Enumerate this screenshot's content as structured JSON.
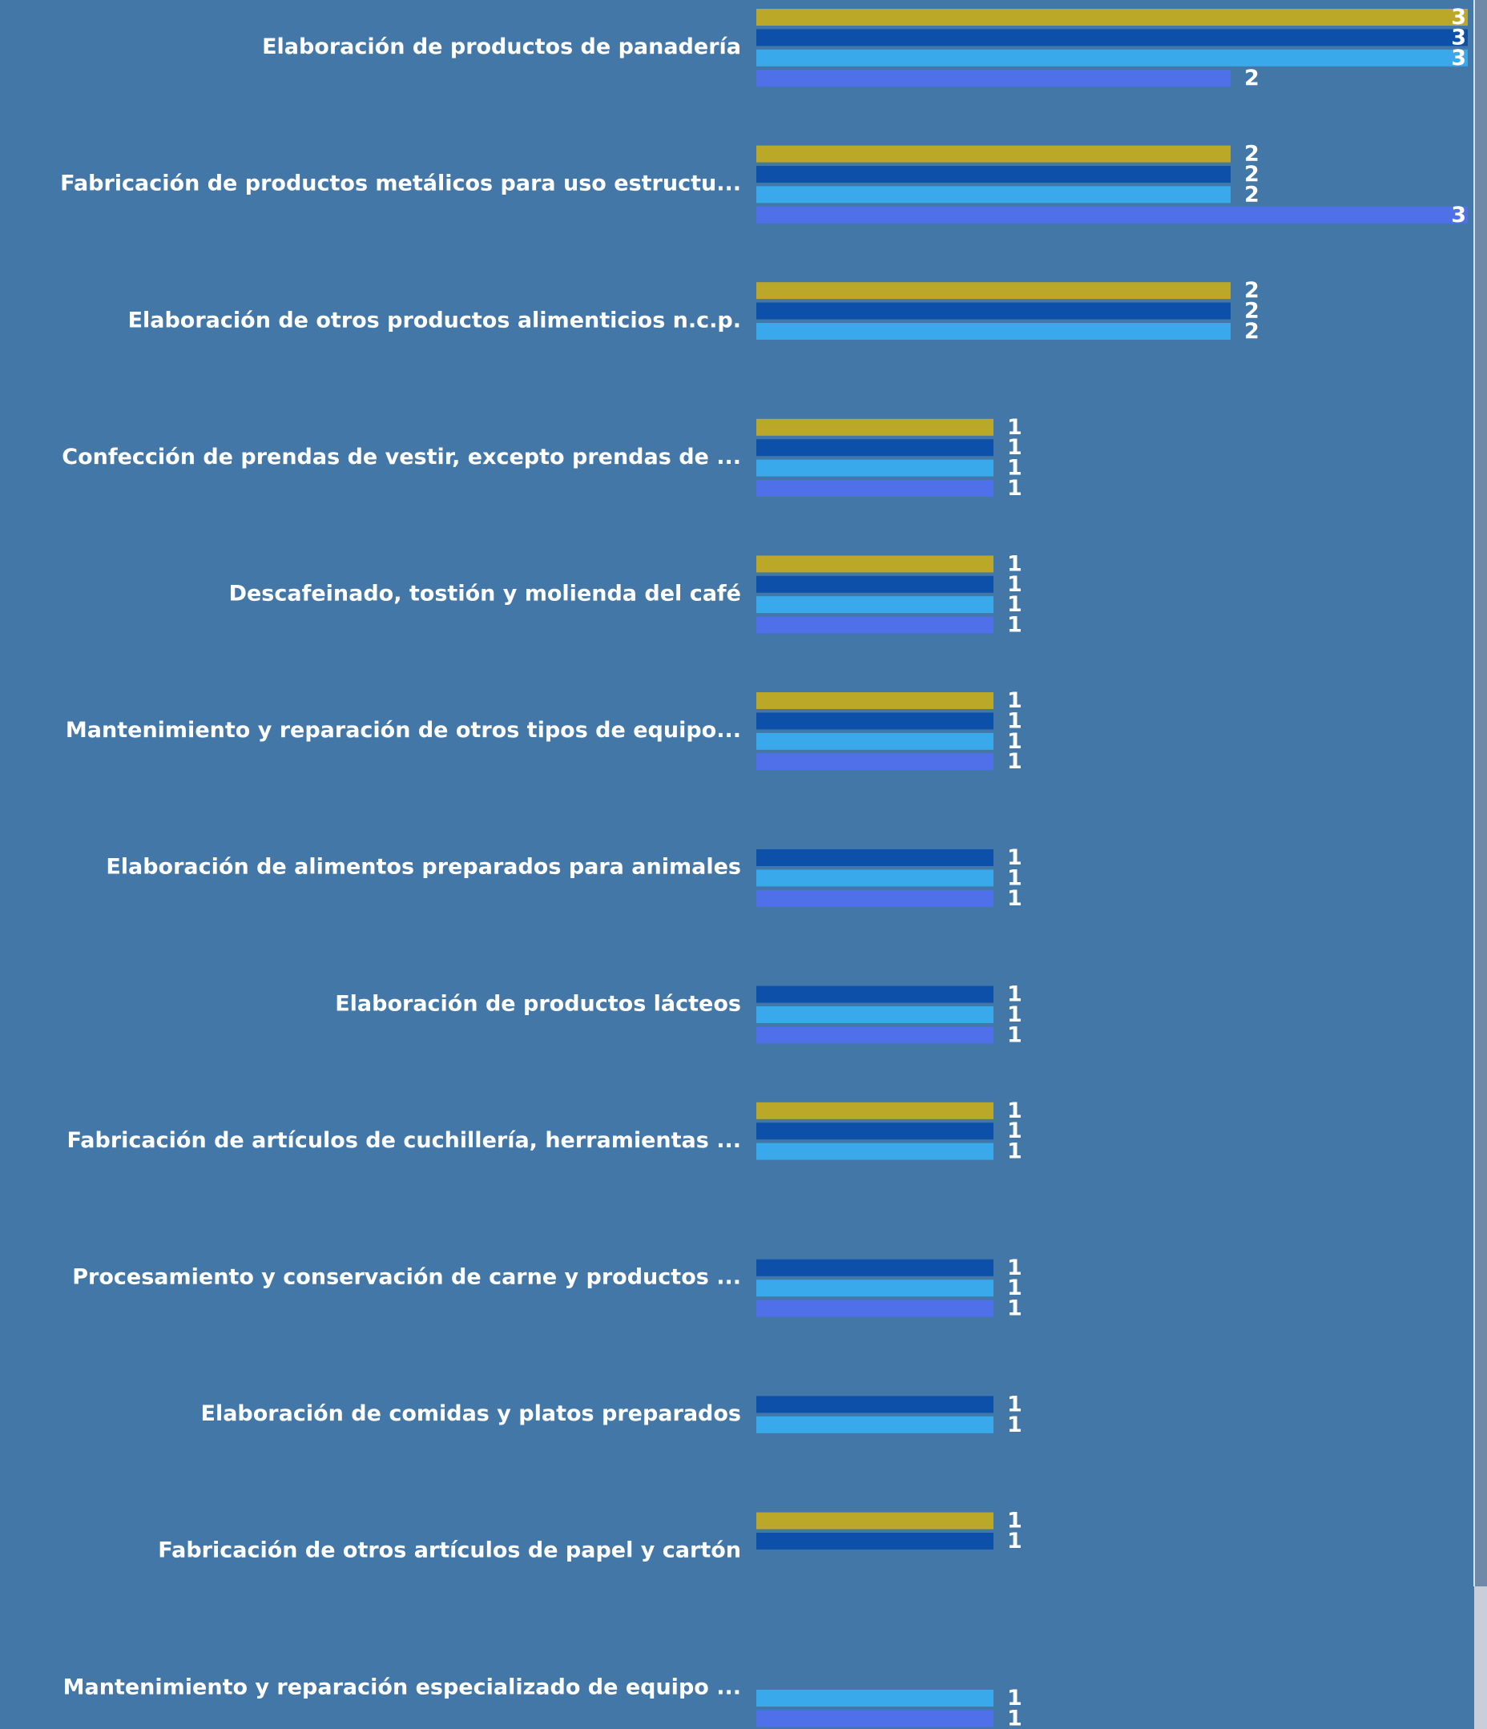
{
  "chart_data": {
    "type": "bar",
    "orientation": "horizontal",
    "categories": [
      "Elaboración de productos de panadería",
      "Fabricación de productos metálicos para uso estructu...",
      "Elaboración de otros productos alimenticios n.c.p.",
      "Confección de prendas de vestir, excepto prendas de ...",
      "Descafeinado, tostión y molienda del café",
      "Mantenimiento y reparación de otros tipos de equipo...",
      "Elaboración de alimentos preparados para animales",
      "Elaboración de productos lácteos",
      "Fabricación de artículos de cuchillería, herramientas ...",
      "Procesamiento y conservación de carne y productos ...",
      "Elaboración de comidas y platos preparados",
      "Fabricación de otros artículos de papel y cartón",
      "Mantenimiento y reparación especializado de equipo ..."
    ],
    "series": [
      {
        "color": "#bba828",
        "values": [
          3,
          2,
          2,
          1,
          1,
          1,
          null,
          null,
          1,
          null,
          null,
          1,
          null
        ]
      },
      {
        "color": "#0d50aa",
        "values": [
          3,
          2,
          2,
          1,
          1,
          1,
          1,
          1,
          1,
          1,
          1,
          1,
          null
        ]
      },
      {
        "color": "#3aa9ec",
        "values": [
          3,
          2,
          2,
          1,
          1,
          1,
          1,
          1,
          1,
          1,
          1,
          null,
          1
        ]
      },
      {
        "color": "#5070ea",
        "values": [
          2,
          3,
          null,
          1,
          1,
          1,
          1,
          1,
          null,
          1,
          null,
          null,
          1
        ]
      }
    ],
    "xlim": [
      0,
      3
    ]
  }
}
